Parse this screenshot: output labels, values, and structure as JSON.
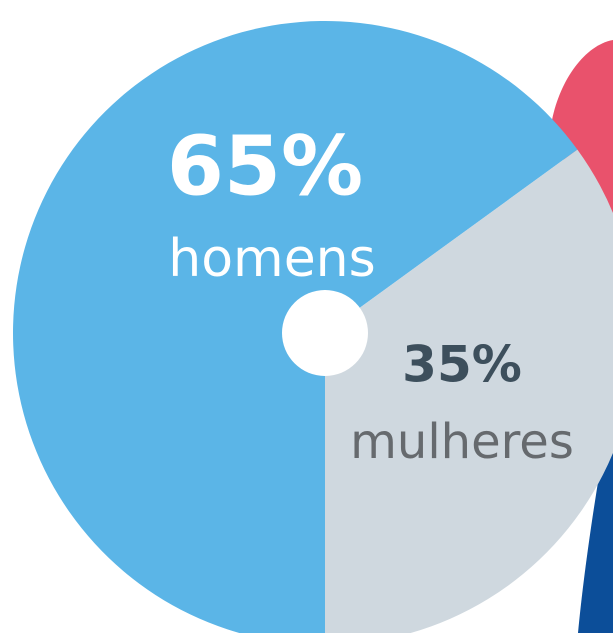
{
  "chart_data": {
    "type": "pie",
    "categories": [
      "homens",
      "mulheres"
    ],
    "values": [
      65,
      35
    ],
    "value_labels": [
      "65%",
      "35%"
    ],
    "colors": [
      "#5bb5e7",
      "#cfd8df"
    ]
  }
}
